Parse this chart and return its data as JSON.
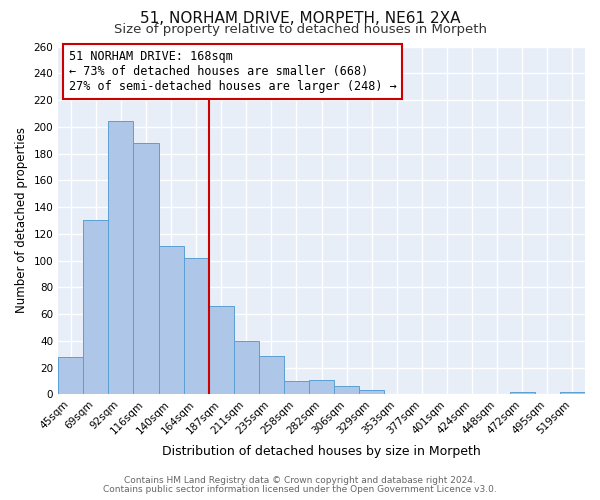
{
  "title": "51, NORHAM DRIVE, MORPETH, NE61 2XA",
  "subtitle": "Size of property relative to detached houses in Morpeth",
  "xlabel": "Distribution of detached houses by size in Morpeth",
  "ylabel": "Number of detached properties",
  "bar_labels": [
    "45sqm",
    "69sqm",
    "92sqm",
    "116sqm",
    "140sqm",
    "164sqm",
    "187sqm",
    "211sqm",
    "235sqm",
    "258sqm",
    "282sqm",
    "306sqm",
    "329sqm",
    "353sqm",
    "377sqm",
    "401sqm",
    "424sqm",
    "448sqm",
    "472sqm",
    "495sqm",
    "519sqm"
  ],
  "bar_heights": [
    28,
    130,
    204,
    188,
    111,
    102,
    66,
    40,
    29,
    10,
    11,
    6,
    3,
    0,
    0,
    0,
    0,
    0,
    2,
    0,
    2
  ],
  "bar_color": "#aec6e8",
  "bar_edge_color": "#5a9fd4",
  "vline_color": "#cc0000",
  "annotation_text": "51 NORHAM DRIVE: 168sqm\n← 73% of detached houses are smaller (668)\n27% of semi-detached houses are larger (248) →",
  "annotation_box_color": "#ffffff",
  "annotation_box_edge": "#cc0000",
  "ylim": [
    0,
    260
  ],
  "yticks": [
    0,
    20,
    40,
    60,
    80,
    100,
    120,
    140,
    160,
    180,
    200,
    220,
    240,
    260
  ],
  "footer_line1": "Contains HM Land Registry data © Crown copyright and database right 2024.",
  "footer_line2": "Contains public sector information licensed under the Open Government Licence v3.0.",
  "plot_bg_color": "#e8eef8",
  "fig_bg_color": "#ffffff",
  "grid_color": "#ffffff",
  "title_fontsize": 11,
  "subtitle_fontsize": 9.5,
  "tick_fontsize": 7.5,
  "ylabel_fontsize": 8.5,
  "xlabel_fontsize": 9,
  "footer_fontsize": 6.5,
  "annotation_fontsize": 8.5,
  "vline_x_index": 5
}
